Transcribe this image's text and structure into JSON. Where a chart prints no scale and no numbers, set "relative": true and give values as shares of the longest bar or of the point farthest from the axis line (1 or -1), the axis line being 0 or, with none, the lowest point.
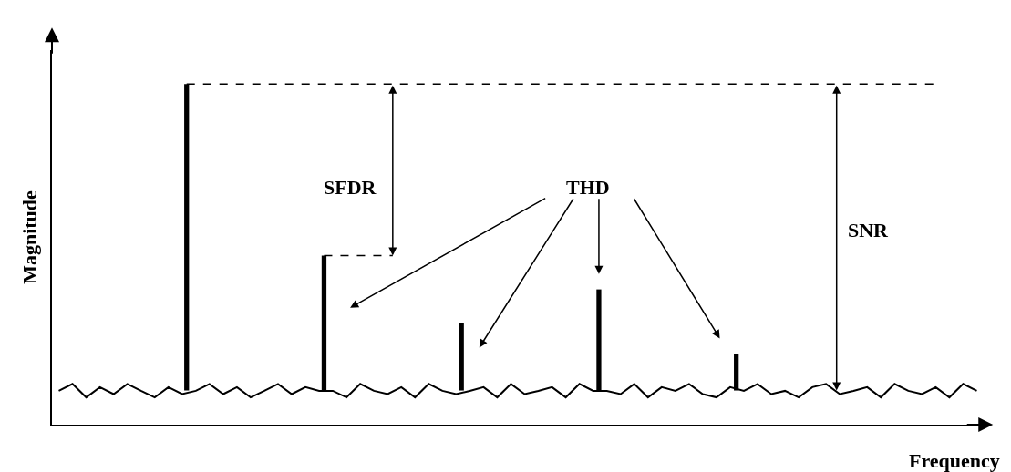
{
  "chart_data": [
    {
      "type": "line",
      "relative": true,
      "xlabel": "Frequency",
      "ylabel": "Magnitude",
      "categories": [
        null,
        null,
        null,
        null,
        null,
        null,
        null,
        null,
        null,
        null,
        null,
        null,
        null,
        null,
        null,
        null,
        null,
        null,
        null,
        null,
        null,
        null,
        null,
        null,
        null,
        null,
        null,
        null,
        null,
        null,
        null,
        null,
        null,
        null,
        null,
        null,
        null,
        null,
        null,
        null,
        null,
        null,
        null,
        null,
        null,
        null,
        null,
        null,
        null,
        null,
        null,
        null,
        null,
        null,
        null,
        null,
        null,
        null,
        null,
        null,
        null,
        null,
        null,
        null,
        null,
        null,
        null,
        null
      ],
      "series": [
        {
          "color": "#000000",
          "line_style": "solid",
          "values": [
            0.83,
            1,
            0.67,
            0.92,
            0.75,
            1,
            0.83,
            0.67,
            0.92,
            0.75,
            0.83,
            1,
            0.75,
            0.92,
            0.67,
            0.83,
            1,
            0.75,
            0.92,
            0.83,
            0.83,
            0.67,
            1,
            0.83,
            0.75,
            0.92,
            0.67,
            1,
            0.83,
            0.75,
            0.83,
            0.92,
            0.67,
            1,
            0.75,
            0.83,
            0.92,
            0.67,
            1,
            0.83,
            0.83,
            0.75,
            1,
            0.67,
            0.92,
            0.83,
            1,
            0.75,
            0.67,
            0.92,
            0.83,
            1,
            0.75,
            0.83,
            0.67,
            0.92,
            1,
            0.75,
            0.83,
            0.92,
            0.67,
            1,
            0.83,
            0.75,
            0.92,
            0.67,
            1,
            0.83
          ]
        }
      ]
    },
    {
      "type": "bar",
      "relative": true,
      "annotations": [
        "SFDR",
        "THD",
        "SNR"
      ],
      "categories": [
        null,
        null,
        null,
        null,
        null
      ],
      "series": [
        {
          "color": "#000000",
          "values": [
            1,
            0.44,
            0.22,
            0.33,
            0.12
          ]
        }
      ]
    }
  ]
}
